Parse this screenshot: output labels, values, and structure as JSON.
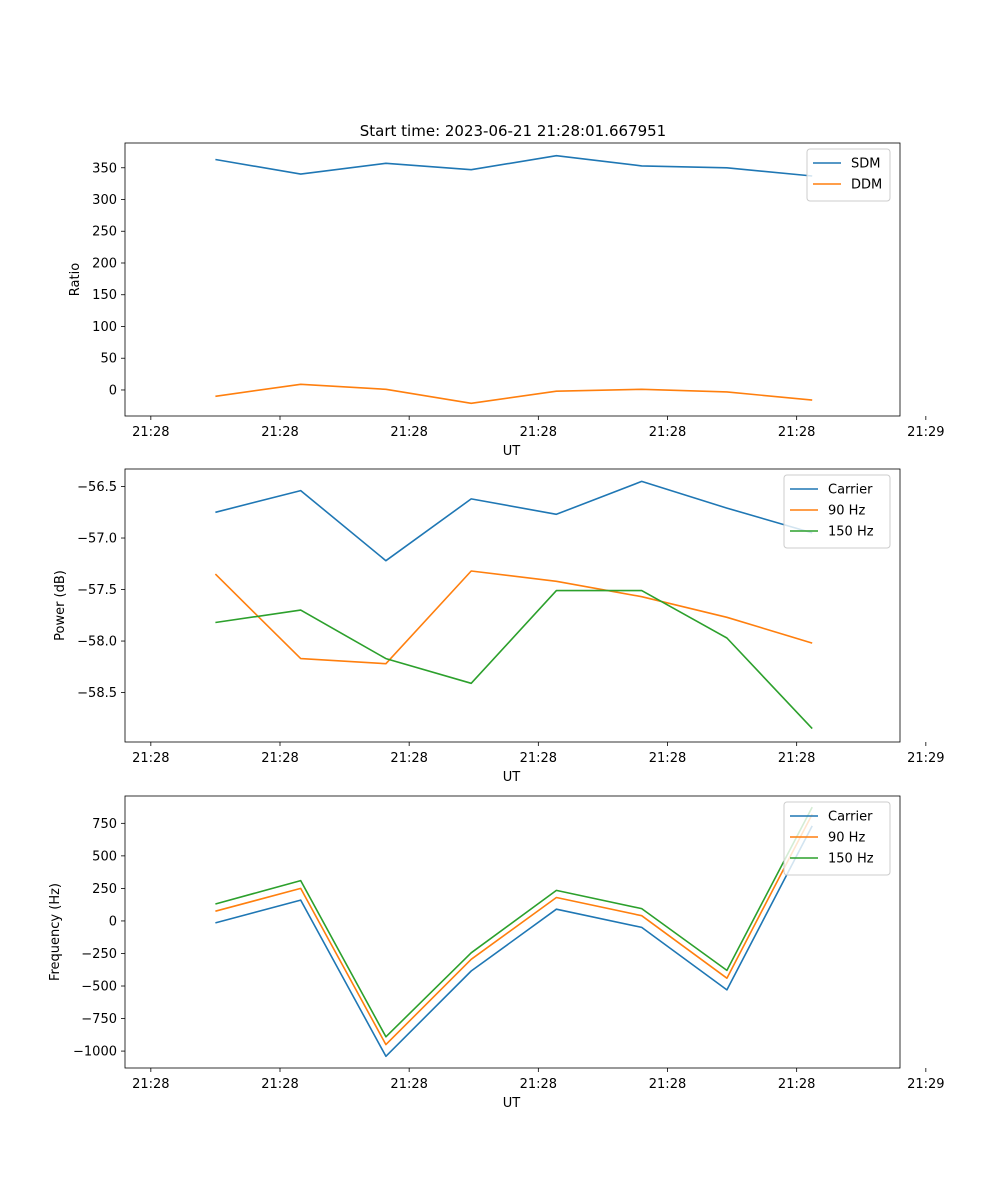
{
  "figure": {
    "title": "Start time: 2023-06-21 21:28:01.667951"
  },
  "chart_data": [
    {
      "type": "line",
      "title": "Start time: 2023-06-21 21:28:01.667951",
      "xlabel": "UT",
      "ylabel": "Ratio",
      "x_tick_labels": [
        "21:28",
        "21:28",
        "21:28",
        "21:28",
        "21:28",
        "21:28",
        "21:29"
      ],
      "x": [
        3.5,
        6.8,
        10.1,
        13.4,
        16.7,
        20.0,
        23.3,
        26.6
      ],
      "xlim": [
        0,
        30
      ],
      "y_ticks": [
        0,
        50,
        100,
        150,
        200,
        250,
        300,
        350
      ],
      "ylim": [
        -41,
        389
      ],
      "grid": false,
      "legend": "top-right",
      "series": [
        {
          "name": "SDM",
          "color": "#1f77b4",
          "values": [
            363,
            340,
            357,
            347,
            369,
            353,
            350,
            337
          ]
        },
        {
          "name": "DDM",
          "color": "#ff7f0e",
          "values": [
            -10,
            9,
            1,
            -21,
            -2,
            1,
            -3,
            -16
          ]
        }
      ]
    },
    {
      "type": "line",
      "xlabel": "UT",
      "ylabel": "Power (dB)",
      "x_tick_labels": [
        "21:28",
        "21:28",
        "21:28",
        "21:28",
        "21:28",
        "21:28",
        "21:29"
      ],
      "x": [
        3.5,
        6.8,
        10.1,
        13.4,
        16.7,
        20.0,
        23.3,
        26.6
      ],
      "xlim": [
        0,
        30
      ],
      "y_ticks": [
        -56.5,
        -57.0,
        -57.5,
        -58.0,
        -58.5
      ],
      "y_tick_labels": [
        "−56.5",
        "−57.0",
        "−57.5",
        "−58.0",
        "−58.5"
      ],
      "ylim": [
        -58.98,
        -56.33
      ],
      "grid": false,
      "legend": "top-right",
      "series": [
        {
          "name": "Carrier",
          "color": "#1f77b4",
          "values": [
            -56.75,
            -56.54,
            -57.22,
            -56.62,
            -56.77,
            -56.45,
            -56.71,
            -56.95
          ]
        },
        {
          "name": "90 Hz",
          "color": "#ff7f0e",
          "values": [
            -57.35,
            -58.17,
            -58.22,
            -57.32,
            -57.42,
            -57.57,
            -57.77,
            -58.02
          ]
        },
        {
          "name": "150 Hz",
          "color": "#2ca02c",
          "values": [
            -57.82,
            -57.7,
            -58.17,
            -58.41,
            -57.51,
            -57.51,
            -57.97,
            -58.85
          ]
        }
      ]
    },
    {
      "type": "line",
      "xlabel": "UT",
      "ylabel": "Frequency (Hz)",
      "x_tick_labels": [
        "21:28",
        "21:28",
        "21:28",
        "21:28",
        "21:28",
        "21:28",
        "21:29"
      ],
      "x": [
        3.5,
        6.8,
        10.1,
        13.4,
        16.7,
        20.0,
        23.3,
        26.6
      ],
      "xlim": [
        0,
        30
      ],
      "y_ticks": [
        750,
        500,
        250,
        0,
        -250,
        -500,
        -750,
        -1000
      ],
      "y_tick_labels": [
        "750",
        "500",
        "250",
        "0",
        "−250",
        "−500",
        "−750",
        "−1000"
      ],
      "ylim": [
        -1130,
        960
      ],
      "grid": false,
      "legend": "top-right",
      "series": [
        {
          "name": "Carrier",
          "color": "#1f77b4",
          "values": [
            -15,
            160,
            -1040,
            -385,
            90,
            -50,
            -530,
            730
          ]
        },
        {
          "name": "90 Hz",
          "color": "#ff7f0e",
          "values": [
            75,
            250,
            -950,
            -295,
            180,
            40,
            -440,
            820
          ]
        },
        {
          "name": "150 Hz",
          "color": "#2ca02c",
          "values": [
            130,
            310,
            -890,
            -245,
            235,
            95,
            -380,
            875
          ]
        }
      ]
    }
  ]
}
